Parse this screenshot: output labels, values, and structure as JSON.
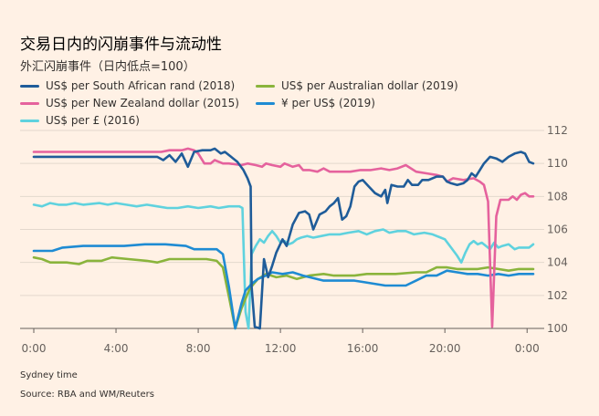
{
  "title": "交易日内的闪崩事件与流动性",
  "subtitle": "外汇闪崩事件（日内低点=100）",
  "footer": {
    "xlabel": "Sydney time",
    "source": "Source: RBA and WM/Reuters"
  },
  "chart_data": {
    "type": "line",
    "xlabel": "Sydney time",
    "ylabel": "",
    "xlim": [
      0,
      24.3
    ],
    "ylim": [
      100,
      112
    ],
    "x_ticks": [
      {
        "x": 0,
        "label": "0:00"
      },
      {
        "x": 4,
        "label": "4:00"
      },
      {
        "x": 8,
        "label": "8:00"
      },
      {
        "x": 12,
        "label": "12:00"
      },
      {
        "x": 16,
        "label": "16:00"
      },
      {
        "x": 20,
        "label": "20:00"
      },
      {
        "x": 24,
        "label": "0:00"
      }
    ],
    "y_ticks": [
      100,
      102,
      104,
      106,
      108,
      110,
      112
    ],
    "grid": "horizontal",
    "legend_position": "top",
    "series": [
      {
        "name": "US$ per South African rand (2018)",
        "color": "#1f5c99",
        "points": [
          [
            0,
            110.4
          ],
          [
            2,
            110.4
          ],
          [
            4,
            110.4
          ],
          [
            5.6,
            110.4
          ],
          [
            6,
            110.4
          ],
          [
            6.3,
            110.2
          ],
          [
            6.6,
            110.5
          ],
          [
            6.9,
            110.1
          ],
          [
            7.2,
            110.6
          ],
          [
            7.5,
            109.8
          ],
          [
            7.8,
            110.7
          ],
          [
            8.2,
            110.8
          ],
          [
            8.6,
            110.8
          ],
          [
            8.8,
            110.9
          ],
          [
            9.1,
            110.6
          ],
          [
            9.3,
            110.7
          ],
          [
            9.6,
            110.4
          ],
          [
            9.9,
            110.1
          ],
          [
            10.2,
            109.6
          ],
          [
            10.4,
            109.1
          ],
          [
            10.55,
            108.6
          ],
          [
            10.6,
            102.5
          ],
          [
            10.75,
            100.1
          ],
          [
            11,
            100.0
          ],
          [
            11.2,
            104.2
          ],
          [
            11.4,
            103.1
          ],
          [
            11.6,
            103.8
          ],
          [
            11.8,
            104.6
          ],
          [
            12.1,
            105.4
          ],
          [
            12.3,
            105.0
          ],
          [
            12.6,
            106.3
          ],
          [
            12.9,
            107.0
          ],
          [
            13.2,
            107.1
          ],
          [
            13.4,
            106.9
          ],
          [
            13.6,
            106.0
          ],
          [
            13.9,
            106.9
          ],
          [
            14.2,
            107.1
          ],
          [
            14.4,
            107.4
          ],
          [
            14.6,
            107.6
          ],
          [
            14.8,
            107.9
          ],
          [
            15,
            106.6
          ],
          [
            15.2,
            106.8
          ],
          [
            15.4,
            107.4
          ],
          [
            15.6,
            108.6
          ],
          [
            15.8,
            108.9
          ],
          [
            16,
            109.0
          ],
          [
            16.3,
            108.6
          ],
          [
            16.6,
            108.2
          ],
          [
            16.9,
            108.0
          ],
          [
            17.1,
            108.4
          ],
          [
            17.2,
            107.6
          ],
          [
            17.4,
            108.7
          ],
          [
            17.7,
            108.6
          ],
          [
            18,
            108.6
          ],
          [
            18.2,
            109.0
          ],
          [
            18.4,
            108.7
          ],
          [
            18.7,
            108.7
          ],
          [
            18.9,
            109.0
          ],
          [
            19.2,
            109.0
          ],
          [
            19.4,
            109.1
          ],
          [
            19.6,
            109.2
          ],
          [
            19.9,
            109.2
          ],
          [
            20.1,
            108.9
          ],
          [
            20.3,
            108.8
          ],
          [
            20.6,
            108.7
          ],
          [
            20.9,
            108.8
          ],
          [
            21.1,
            109.0
          ],
          [
            21.3,
            109.4
          ],
          [
            21.5,
            109.2
          ],
          [
            21.7,
            109.6
          ],
          [
            21.9,
            110.0
          ],
          [
            22.2,
            110.4
          ],
          [
            22.5,
            110.3
          ],
          [
            22.8,
            110.1
          ],
          [
            23.1,
            110.4
          ],
          [
            23.4,
            110.6
          ],
          [
            23.7,
            110.7
          ],
          [
            23.9,
            110.6
          ],
          [
            24.1,
            110.1
          ],
          [
            24.3,
            110.0
          ]
        ]
      },
      {
        "name": "US$ per Australian dollar (2019)",
        "color": "#8ab43c",
        "points": [
          [
            0,
            104.3
          ],
          [
            0.4,
            104.2
          ],
          [
            0.8,
            104.0
          ],
          [
            1.6,
            104.0
          ],
          [
            2.2,
            103.9
          ],
          [
            2.6,
            104.1
          ],
          [
            3.3,
            104.1
          ],
          [
            3.8,
            104.3
          ],
          [
            4.6,
            104.2
          ],
          [
            5.5,
            104.1
          ],
          [
            6,
            104.0
          ],
          [
            6.6,
            104.2
          ],
          [
            7.6,
            104.2
          ],
          [
            8.4,
            104.2
          ],
          [
            8.9,
            104.1
          ],
          [
            9.2,
            103.7
          ],
          [
            9.5,
            101.9
          ],
          [
            9.8,
            100.0
          ],
          [
            10.1,
            101.2
          ],
          [
            10.5,
            102.4
          ],
          [
            10.9,
            103.0
          ],
          [
            11.3,
            103.3
          ],
          [
            11.8,
            103.1
          ],
          [
            12.3,
            103.2
          ],
          [
            12.8,
            103.0
          ],
          [
            13.4,
            103.2
          ],
          [
            14.1,
            103.3
          ],
          [
            14.6,
            103.2
          ],
          [
            15.6,
            103.2
          ],
          [
            16.2,
            103.3
          ],
          [
            17.1,
            103.3
          ],
          [
            17.6,
            103.3
          ],
          [
            18.6,
            103.4
          ],
          [
            19.1,
            103.4
          ],
          [
            19.6,
            103.7
          ],
          [
            20.1,
            103.7
          ],
          [
            20.6,
            103.6
          ],
          [
            21.1,
            103.6
          ],
          [
            21.6,
            103.6
          ],
          [
            22.1,
            103.7
          ],
          [
            22.6,
            103.6
          ],
          [
            23.1,
            103.5
          ],
          [
            23.6,
            103.6
          ],
          [
            24.3,
            103.6
          ]
        ]
      },
      {
        "name": "US$ per New Zealand dollar (2015)",
        "color": "#e5629d",
        "points": [
          [
            0,
            110.7
          ],
          [
            2,
            110.7
          ],
          [
            4,
            110.7
          ],
          [
            5.6,
            110.7
          ],
          [
            6.2,
            110.7
          ],
          [
            6.6,
            110.8
          ],
          [
            7.2,
            110.8
          ],
          [
            7.5,
            110.9
          ],
          [
            7.8,
            110.8
          ],
          [
            8,
            110.6
          ],
          [
            8.3,
            110.0
          ],
          [
            8.6,
            110.0
          ],
          [
            8.8,
            110.2
          ],
          [
            9.2,
            110.0
          ],
          [
            9.5,
            110.0
          ],
          [
            10.1,
            109.9
          ],
          [
            10.4,
            110.0
          ],
          [
            10.8,
            109.9
          ],
          [
            11.1,
            109.8
          ],
          [
            11.3,
            110.0
          ],
          [
            11.6,
            109.9
          ],
          [
            12,
            109.8
          ],
          [
            12.2,
            110.0
          ],
          [
            12.6,
            109.8
          ],
          [
            12.9,
            109.9
          ],
          [
            13.1,
            109.6
          ],
          [
            13.4,
            109.6
          ],
          [
            13.8,
            109.5
          ],
          [
            14.1,
            109.7
          ],
          [
            14.4,
            109.5
          ],
          [
            14.9,
            109.5
          ],
          [
            15.4,
            109.5
          ],
          [
            15.9,
            109.6
          ],
          [
            16.4,
            109.6
          ],
          [
            16.9,
            109.7
          ],
          [
            17.3,
            109.6
          ],
          [
            17.7,
            109.7
          ],
          [
            18.1,
            109.9
          ],
          [
            18.6,
            109.5
          ],
          [
            19.1,
            109.4
          ],
          [
            19.6,
            109.3
          ],
          [
            19.9,
            109.2
          ],
          [
            20.1,
            108.9
          ],
          [
            20.4,
            109.1
          ],
          [
            20.9,
            109.0
          ],
          [
            21.4,
            109.1
          ],
          [
            21.7,
            108.9
          ],
          [
            21.9,
            108.7
          ],
          [
            22.1,
            107.7
          ],
          [
            22.3,
            100.1
          ],
          [
            22.5,
            106.8
          ],
          [
            22.7,
            107.8
          ],
          [
            23.1,
            107.8
          ],
          [
            23.3,
            108.0
          ],
          [
            23.5,
            107.8
          ],
          [
            23.7,
            108.1
          ],
          [
            23.9,
            108.2
          ],
          [
            24.1,
            108.0
          ],
          [
            24.3,
            108.0
          ]
        ]
      },
      {
        "name": "¥ per US$ (2019)",
        "color": "#1e8bd3",
        "points": [
          [
            0,
            104.7
          ],
          [
            0.9,
            104.7
          ],
          [
            1.4,
            104.9
          ],
          [
            2.4,
            105.0
          ],
          [
            3.4,
            105.0
          ],
          [
            4.4,
            105.0
          ],
          [
            5.4,
            105.1
          ],
          [
            6.4,
            105.1
          ],
          [
            7.4,
            105.0
          ],
          [
            7.8,
            104.8
          ],
          [
            8.4,
            104.8
          ],
          [
            8.9,
            104.8
          ],
          [
            9.2,
            104.5
          ],
          [
            9.5,
            102.5
          ],
          [
            9.8,
            100.0
          ],
          [
            10.1,
            101.5
          ],
          [
            10.3,
            102.3
          ],
          [
            10.6,
            102.7
          ],
          [
            10.9,
            103.0
          ],
          [
            11.3,
            103.2
          ],
          [
            11.6,
            103.4
          ],
          [
            12.1,
            103.3
          ],
          [
            12.6,
            103.4
          ],
          [
            13.1,
            103.2
          ],
          [
            14.1,
            102.9
          ],
          [
            14.6,
            102.9
          ],
          [
            15.6,
            102.9
          ],
          [
            16.1,
            102.8
          ],
          [
            17.1,
            102.6
          ],
          [
            17.6,
            102.6
          ],
          [
            18.1,
            102.6
          ],
          [
            18.6,
            102.9
          ],
          [
            19.1,
            103.2
          ],
          [
            19.6,
            103.2
          ],
          [
            20.1,
            103.5
          ],
          [
            20.6,
            103.4
          ],
          [
            21.1,
            103.3
          ],
          [
            21.6,
            103.3
          ],
          [
            22.1,
            103.2
          ],
          [
            22.6,
            103.3
          ],
          [
            23.1,
            103.2
          ],
          [
            23.6,
            103.3
          ],
          [
            24.3,
            103.3
          ]
        ]
      },
      {
        "name": "US$ per £ (2016)",
        "color": "#5fd2de",
        "points": [
          [
            0,
            107.5
          ],
          [
            0.4,
            107.4
          ],
          [
            0.8,
            107.6
          ],
          [
            1.2,
            107.5
          ],
          [
            1.6,
            107.5
          ],
          [
            2,
            107.6
          ],
          [
            2.4,
            107.5
          ],
          [
            3.2,
            107.6
          ],
          [
            3.6,
            107.5
          ],
          [
            4,
            107.6
          ],
          [
            4.5,
            107.5
          ],
          [
            5,
            107.4
          ],
          [
            5.5,
            107.5
          ],
          [
            6,
            107.4
          ],
          [
            6.5,
            107.3
          ],
          [
            7,
            107.3
          ],
          [
            7.5,
            107.4
          ],
          [
            8,
            107.3
          ],
          [
            8.6,
            107.4
          ],
          [
            9,
            107.3
          ],
          [
            9.5,
            107.4
          ],
          [
            10,
            107.4
          ],
          [
            10.15,
            107.3
          ],
          [
            10.3,
            101.0
          ],
          [
            10.45,
            100.0
          ],
          [
            10.6,
            104.5
          ],
          [
            10.8,
            105.0
          ],
          [
            11,
            105.4
          ],
          [
            11.2,
            105.2
          ],
          [
            11.4,
            105.6
          ],
          [
            11.6,
            105.9
          ],
          [
            11.8,
            105.6
          ],
          [
            12,
            105.2
          ],
          [
            12.2,
            105.3
          ],
          [
            12.4,
            105.1
          ],
          [
            12.6,
            105.2
          ],
          [
            12.8,
            105.4
          ],
          [
            13,
            105.5
          ],
          [
            13.3,
            105.6
          ],
          [
            13.6,
            105.5
          ],
          [
            14,
            105.6
          ],
          [
            14.4,
            105.7
          ],
          [
            14.9,
            105.7
          ],
          [
            15.3,
            105.8
          ],
          [
            15.8,
            105.9
          ],
          [
            16.2,
            105.7
          ],
          [
            16.6,
            105.9
          ],
          [
            17.0,
            106.0
          ],
          [
            17.3,
            105.8
          ],
          [
            17.7,
            105.9
          ],
          [
            18.1,
            105.9
          ],
          [
            18.5,
            105.7
          ],
          [
            19.0,
            105.8
          ],
          [
            19.4,
            105.7
          ],
          [
            19.8,
            105.5
          ],
          [
            20.0,
            105.4
          ],
          [
            20.3,
            104.9
          ],
          [
            20.6,
            104.4
          ],
          [
            20.8,
            104.0
          ],
          [
            21,
            104.6
          ],
          [
            21.2,
            105.1
          ],
          [
            21.4,
            105.3
          ],
          [
            21.6,
            105.1
          ],
          [
            21.8,
            105.2
          ],
          [
            22,
            105.0
          ],
          [
            22.2,
            104.8
          ],
          [
            22.4,
            105.2
          ],
          [
            22.6,
            104.9
          ],
          [
            22.8,
            105.0
          ],
          [
            23.1,
            105.1
          ],
          [
            23.4,
            104.8
          ],
          [
            23.6,
            104.9
          ],
          [
            23.9,
            104.9
          ],
          [
            24.1,
            104.9
          ],
          [
            24.3,
            105.1
          ]
        ]
      }
    ]
  }
}
